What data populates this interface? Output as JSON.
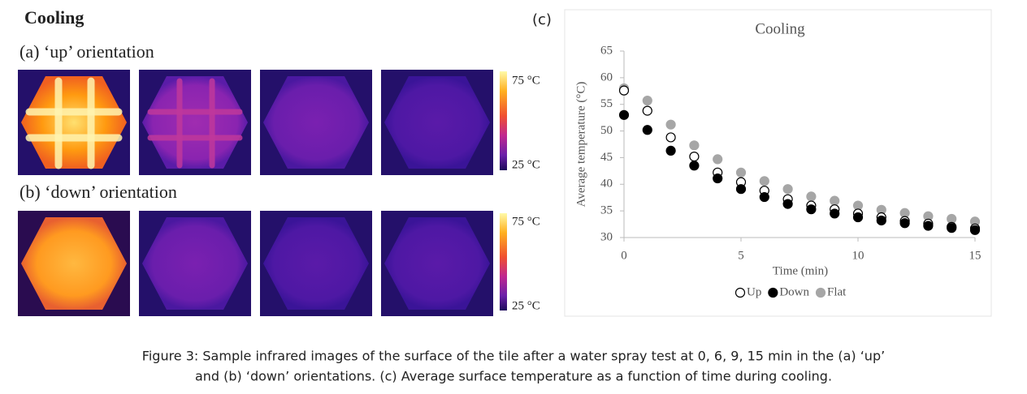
{
  "header": {
    "title": "Cooling",
    "panel_a": "(a) ‘up’ orientation",
    "panel_b": "(b) ‘down’ orientation",
    "panel_c": "(c)"
  },
  "colorbars": [
    {
      "max": "75 °C",
      "min": "25 °C"
    },
    {
      "max": "75 °C",
      "min": "25 °C"
    }
  ],
  "chart_data": {
    "type": "scatter",
    "title": "Cooling",
    "xlabel": "Time (min)",
    "ylabel": "Average temperature (°C)",
    "x": [
      0,
      1,
      2,
      3,
      4,
      5,
      6,
      7,
      8,
      9,
      10,
      11,
      12,
      13,
      14,
      15
    ],
    "series": [
      {
        "name": "Up",
        "color": "#ffffff",
        "edgecolor": "#000000",
        "values": [
          57.6,
          53.8,
          48.8,
          45.2,
          42.2,
          40.4,
          38.8,
          37.2,
          36.0,
          35.3,
          34.5,
          33.8,
          33.1,
          32.6,
          32.0,
          31.7
        ]
      },
      {
        "name": "Down",
        "color": "#000000",
        "edgecolor": "#000000",
        "values": [
          53.0,
          50.2,
          46.3,
          43.5,
          41.1,
          39.1,
          37.6,
          36.3,
          35.3,
          34.5,
          33.8,
          33.2,
          32.7,
          32.2,
          31.8,
          31.4
        ]
      },
      {
        "name": "Flat",
        "color": "#a6a6a6",
        "edgecolor": "#a6a6a6",
        "values": [
          58.0,
          55.7,
          51.2,
          47.3,
          44.7,
          42.2,
          40.6,
          39.1,
          37.7,
          36.9,
          36.0,
          35.2,
          34.6,
          34.0,
          33.5,
          33.0
        ]
      }
    ],
    "xlim": [
      0,
      15
    ],
    "xticks": [
      0,
      5,
      10,
      15
    ],
    "ylim": [
      30,
      65
    ],
    "yticks": [
      30,
      35,
      40,
      45,
      50,
      55,
      60,
      65
    ],
    "grid": false,
    "legend": "bottom"
  },
  "caption": [
    "Figure 3: Sample infrared images of the surface of the tile after a water spray test at 0, 6, 9, 15 min in the (a) ‘up’",
    "and (b) ‘down’ orientations. (c) Average surface temperature as a function of time during cooling."
  ]
}
